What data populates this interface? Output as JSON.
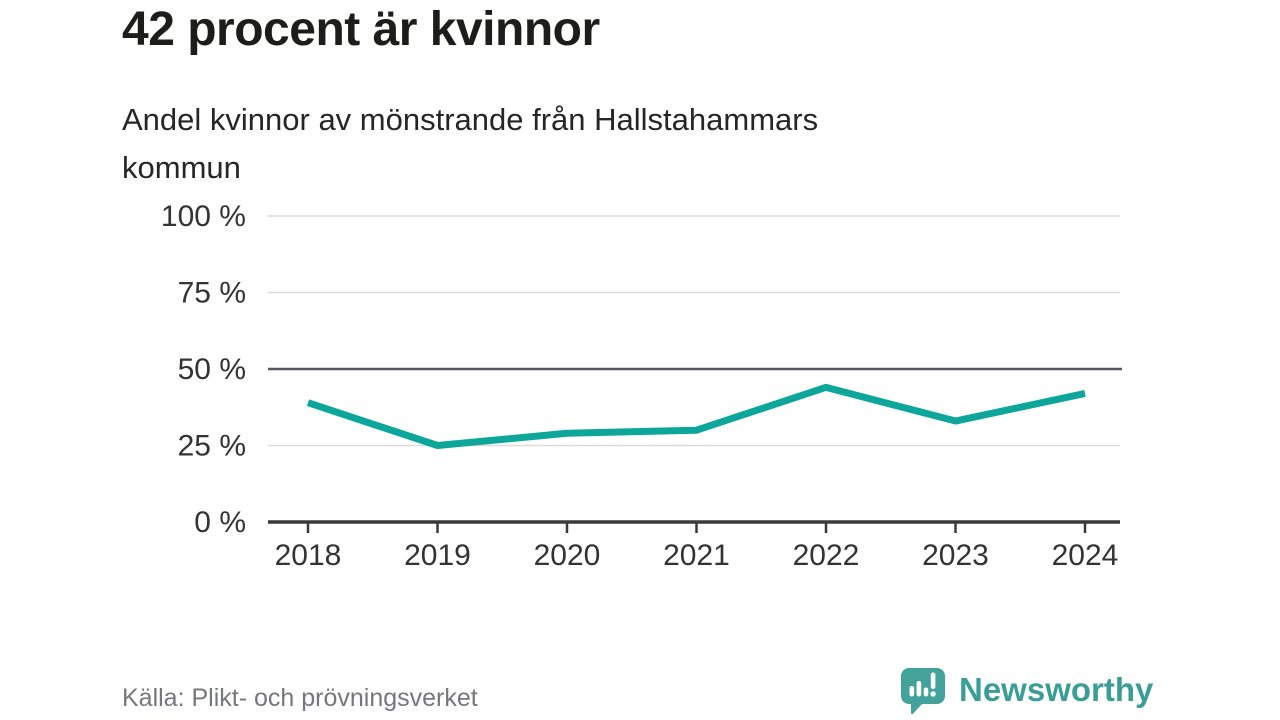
{
  "header": {
    "title": "42 procent är kvinnor",
    "subtitle": "Andel kvinnor av mönstrande från Hallstahammars kommun",
    "subtitle_lines": [
      "Andel kvinnor av mönstrande från Hallstahammars",
      "kommun"
    ]
  },
  "chart_data": {
    "type": "line",
    "title": "42 procent är kvinnor",
    "subtitle": "Andel kvinnor av mönstrande från Hallstahammars kommun",
    "x": [
      2018,
      2019,
      2020,
      2021,
      2022,
      2023,
      2024
    ],
    "xtick_labels": [
      "2018",
      "2019",
      "2020",
      "2021",
      "2022",
      "2023",
      "2024"
    ],
    "series": [
      {
        "name": "Andel kvinnor av mönstrande",
        "values": [
          39,
          25,
          29,
          30,
          44,
          33,
          42
        ]
      }
    ],
    "xlabel": "",
    "ylabel": "",
    "ylim": [
      0,
      100
    ],
    "yticks": [
      0,
      25,
      50,
      75,
      100
    ],
    "ytick_labels": [
      "0 %",
      "25 %",
      "50 %",
      "75 %",
      "100 %"
    ],
    "grid": "horizontal",
    "emphasized_gridline": 50,
    "legend": "none",
    "line_color": "#0ca69a"
  },
  "footer": {
    "source": "Källa: Plikt- och prövningsverket",
    "logo_text": "Newsworthy"
  },
  "colors": {
    "line_teal": "#0ca69a",
    "logo_teal": "#3a9e97",
    "logo_bubble_teal": "#43a39a",
    "grid": "#dcdcdc",
    "emphasized_grid": "#55565e",
    "axis": "#3a3a3a",
    "axis_text": "#333333",
    "title_text": "#1d1d1b",
    "subtitle_text": "#262626",
    "source_text": "#76767e",
    "background": "#ffffff"
  }
}
